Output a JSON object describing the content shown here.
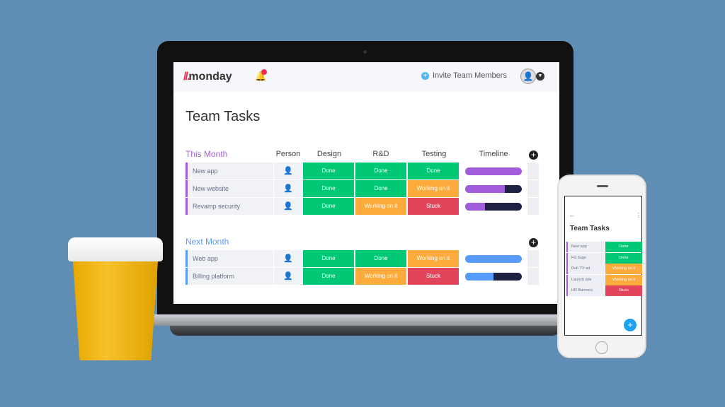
{
  "app": {
    "logo": "monday",
    "invite_label": "Invite Team Members"
  },
  "board": {
    "title": "Team Tasks",
    "columns": [
      "Person",
      "Design",
      "R&D",
      "Testing",
      "Timeline"
    ]
  },
  "colors": {
    "done": "#00c875",
    "working": "#fdab3d",
    "stuck": "#e2445c",
    "purple": "#a25ddc",
    "blue": "#579bfc"
  },
  "groups": [
    {
      "title": "This Month",
      "color": "#a25ddc",
      "rows": [
        {
          "name": "New app",
          "design": "Done",
          "rd": "Done",
          "testing": "Done",
          "timeline_progress": 1.0
        },
        {
          "name": "New website",
          "design": "Done",
          "rd": "Done",
          "testing": "Working on it",
          "timeline_progress": 0.7
        },
        {
          "name": "Revamp security",
          "design": "Done",
          "rd": "Working on it",
          "testing": "Stuck",
          "timeline_progress": 0.35
        }
      ]
    },
    {
      "title": "Next Month",
      "color": "#579bfc",
      "rows": [
        {
          "name": "Web app",
          "design": "Done",
          "rd": "Done",
          "testing": "Working on it",
          "timeline_progress": 1.0
        },
        {
          "name": "Billing platform",
          "design": "Done",
          "rd": "Working on it",
          "testing": "Stuck",
          "timeline_progress": 0.5
        }
      ]
    }
  ],
  "phone": {
    "title": "Team Tasks",
    "rows": [
      {
        "name": "New app",
        "status": "Done"
      },
      {
        "name": "Fix bugs",
        "status": "Done"
      },
      {
        "name": "Dub TV ad",
        "status": "Working on it"
      },
      {
        "name": "Launch ads",
        "status": "Working on it"
      },
      {
        "name": "HR Banners",
        "status": "Stuck"
      }
    ]
  }
}
